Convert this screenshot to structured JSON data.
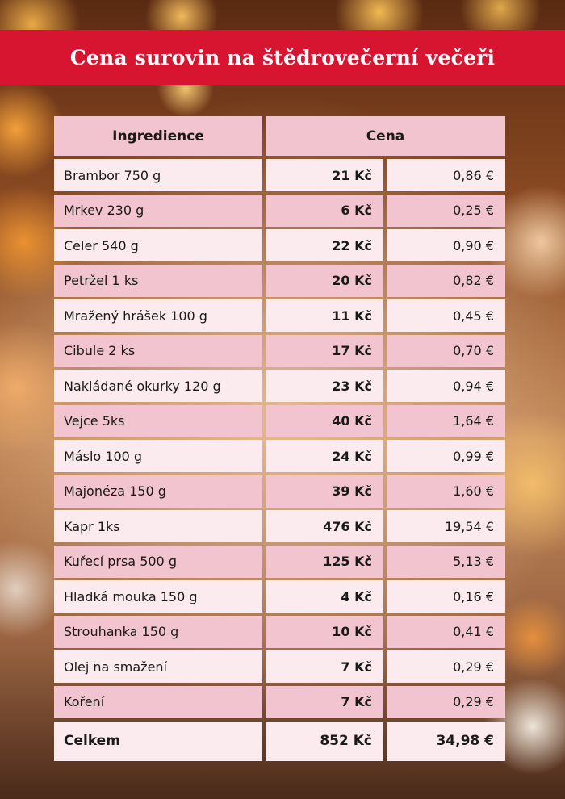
{
  "title": "Cena surovin na štědrovečerní večeři",
  "table": {
    "headers": {
      "ingredient": "Ingredience",
      "price": "Cena"
    },
    "rows": [
      {
        "name": "Brambor 750 g",
        "czk": "21 Kč",
        "eur": "0,86 €"
      },
      {
        "name": "Mrkev 230 g",
        "czk": "6 Kč",
        "eur": "0,25 €"
      },
      {
        "name": "Celer 540 g",
        "czk": "22 Kč",
        "eur": "0,90 €"
      },
      {
        "name": "Petržel 1 ks",
        "czk": "20 Kč",
        "eur": "0,82 €"
      },
      {
        "name": "Mražený hrášek 100 g",
        "czk": "11 Kč",
        "eur": "0,45 €"
      },
      {
        "name": "Cibule 2 ks",
        "czk": "17 Kč",
        "eur": "0,70 €"
      },
      {
        "name": "Nakládané okurky 120 g",
        "czk": "23 Kč",
        "eur": "0,94 €"
      },
      {
        "name": "Vejce 5ks",
        "czk": "40 Kč",
        "eur": "1,64 €"
      },
      {
        "name": "Máslo 100 g",
        "czk": "24 Kč",
        "eur": "0,99 €"
      },
      {
        "name": "Majonéza 150 g",
        "czk": "39 Kč",
        "eur": "1,60 €"
      },
      {
        "name": "Kapr 1ks",
        "czk": "476 Kč",
        "eur": "19,54 €"
      },
      {
        "name": "Kuřecí prsa 500 g",
        "czk": "125 Kč",
        "eur": "5,13 €"
      },
      {
        "name": "Hladká mouka 150 g",
        "czk": "4 Kč",
        "eur": "0,16 €"
      },
      {
        "name": "Strouhanka 150 g",
        "czk": "10 Kč",
        "eur": "0,41 €"
      },
      {
        "name": "Olej na smažení",
        "czk": "7 Kč",
        "eur": "0,29 €"
      },
      {
        "name": "Koření",
        "czk": "7 Kč",
        "eur": "0,29 €"
      }
    ],
    "total": {
      "label": "Celkem",
      "czk": "852 Kč",
      "eur": "34,98 €"
    }
  },
  "colors": {
    "banner": "#d81530",
    "row_light": "#fbeaee",
    "row_dark": "#f2c4cf"
  }
}
